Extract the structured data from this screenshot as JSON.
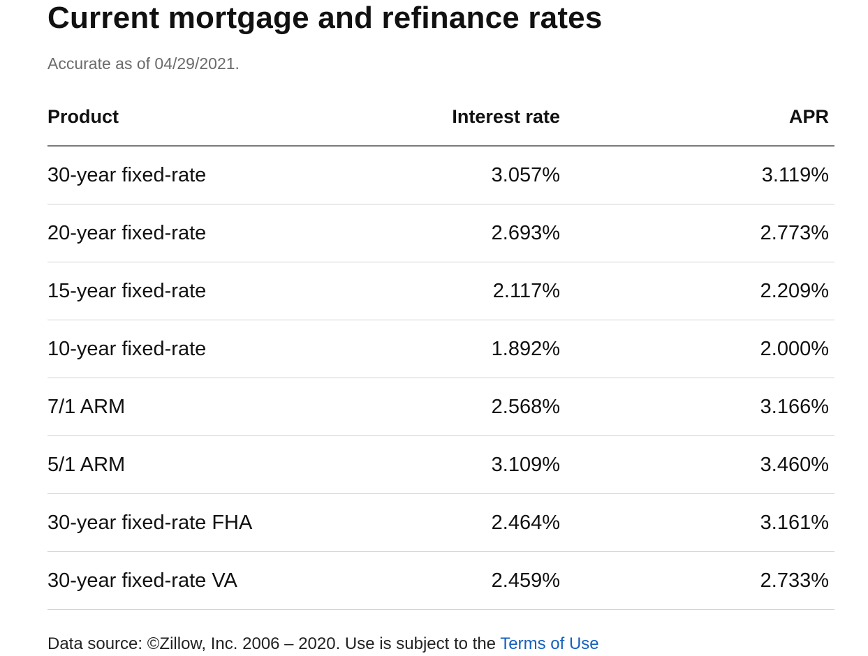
{
  "heading": {
    "title": "Current mortgage and refinance rates",
    "subtitle": "Accurate as of 04/29/2021."
  },
  "table": {
    "columns": {
      "product": "Product",
      "interest_rate": "Interest rate",
      "apr": "APR"
    },
    "rows": [
      {
        "product": "30-year fixed-rate",
        "interest_rate": "3.057%",
        "apr": "3.119%"
      },
      {
        "product": "20-year fixed-rate",
        "interest_rate": "2.693%",
        "apr": "2.773%"
      },
      {
        "product": "15-year fixed-rate",
        "interest_rate": "2.117%",
        "apr": "2.209%"
      },
      {
        "product": "10-year fixed-rate",
        "interest_rate": "1.892%",
        "apr": "2.000%"
      },
      {
        "product": "7/1 ARM",
        "interest_rate": "2.568%",
        "apr": "3.166%"
      },
      {
        "product": "5/1 ARM",
        "interest_rate": "3.109%",
        "apr": "3.460%"
      },
      {
        "product": "30-year fixed-rate FHA",
        "interest_rate": "2.464%",
        "apr": "3.161%"
      },
      {
        "product": "30-year fixed-rate VA",
        "interest_rate": "2.459%",
        "apr": "2.733%"
      }
    ]
  },
  "footer": {
    "source_text": "Data source: ©Zillow, Inc. 2006 – 2020. Use is subject to the ",
    "terms_link": "Terms of Use"
  },
  "colors": {
    "text": "#111111",
    "subtitle": "#6b6b6b",
    "link": "#1560bd",
    "header_rule": "#7a7a7a",
    "row_rule": "#d2d2d2"
  }
}
